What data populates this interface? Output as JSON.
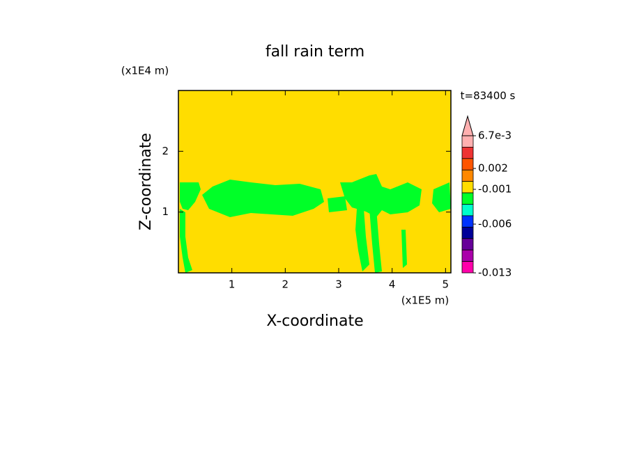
{
  "chart_data": {
    "type": "contour",
    "title": "fall rain term",
    "x_label": "X-coordinate",
    "y_label": "Z-coordinate",
    "x_unit": "(x1E5 m)",
    "y_unit": "(x1E4 m)",
    "time_label": "t=83400 s",
    "xlim": [
      0,
      5.1
    ],
    "ylim": [
      0,
      3
    ],
    "xticks": [
      1,
      2,
      3,
      4,
      5
    ],
    "yticks": [
      1,
      2
    ],
    "background_color": "#ffdd00",
    "region_color": "#00ff28",
    "colorbar": {
      "clim": [
        -0.013,
        0.0067
      ],
      "colors": [
        "#ffb0b0",
        "#ee3333",
        "#ff5500",
        "#ff8800",
        "#ffdd00",
        "#00ff28",
        "#00ffcc",
        "#0033ff",
        "#000099",
        "#660099",
        "#aa00aa",
        "#ff00aa"
      ],
      "ticks": [
        {
          "value": 0.0067,
          "label": "6.7e-3"
        },
        0.002,
        -0.001,
        -0.006,
        -0.013
      ]
    }
  }
}
